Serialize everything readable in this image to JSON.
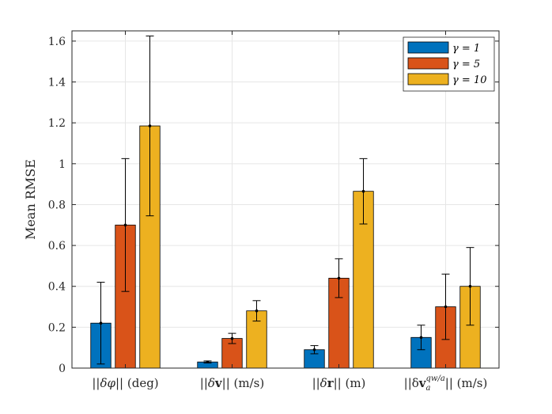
{
  "chart_data": {
    "type": "bar",
    "title": "",
    "xlabel": "",
    "ylabel": "Mean RMSE",
    "ylim": [
      0,
      1.65
    ],
    "yticks": [
      0,
      0.2,
      0.4,
      0.6,
      0.8,
      1,
      1.2,
      1.4,
      1.6
    ],
    "ytick_labels": [
      "0",
      "0.2",
      "0.4",
      "0.6",
      "0.8",
      "1",
      "1.2",
      "1.4",
      "1.6"
    ],
    "grid": true,
    "legend_position": "top-right",
    "categories": [
      "||δφ|| (deg)",
      "||δv|| (m/s)",
      "||δr|| (m)",
      "||δv_a^{qw/a}|| (m/s)"
    ],
    "series": [
      {
        "name": "γ = 1",
        "color": "#0072BD",
        "values": [
          0.22,
          0.03,
          0.09,
          0.15
        ],
        "error": [
          0.2,
          0.005,
          0.02,
          0.06
        ]
      },
      {
        "name": "γ = 5",
        "color": "#D95319",
        "values": [
          0.7,
          0.145,
          0.44,
          0.3
        ],
        "error": [
          0.325,
          0.025,
          0.095,
          0.16
        ]
      },
      {
        "name": "γ = 10",
        "color": "#EDB120",
        "values": [
          1.185,
          0.28,
          0.865,
          0.4
        ],
        "error": [
          0.44,
          0.05,
          0.16,
          0.19
        ]
      }
    ]
  }
}
